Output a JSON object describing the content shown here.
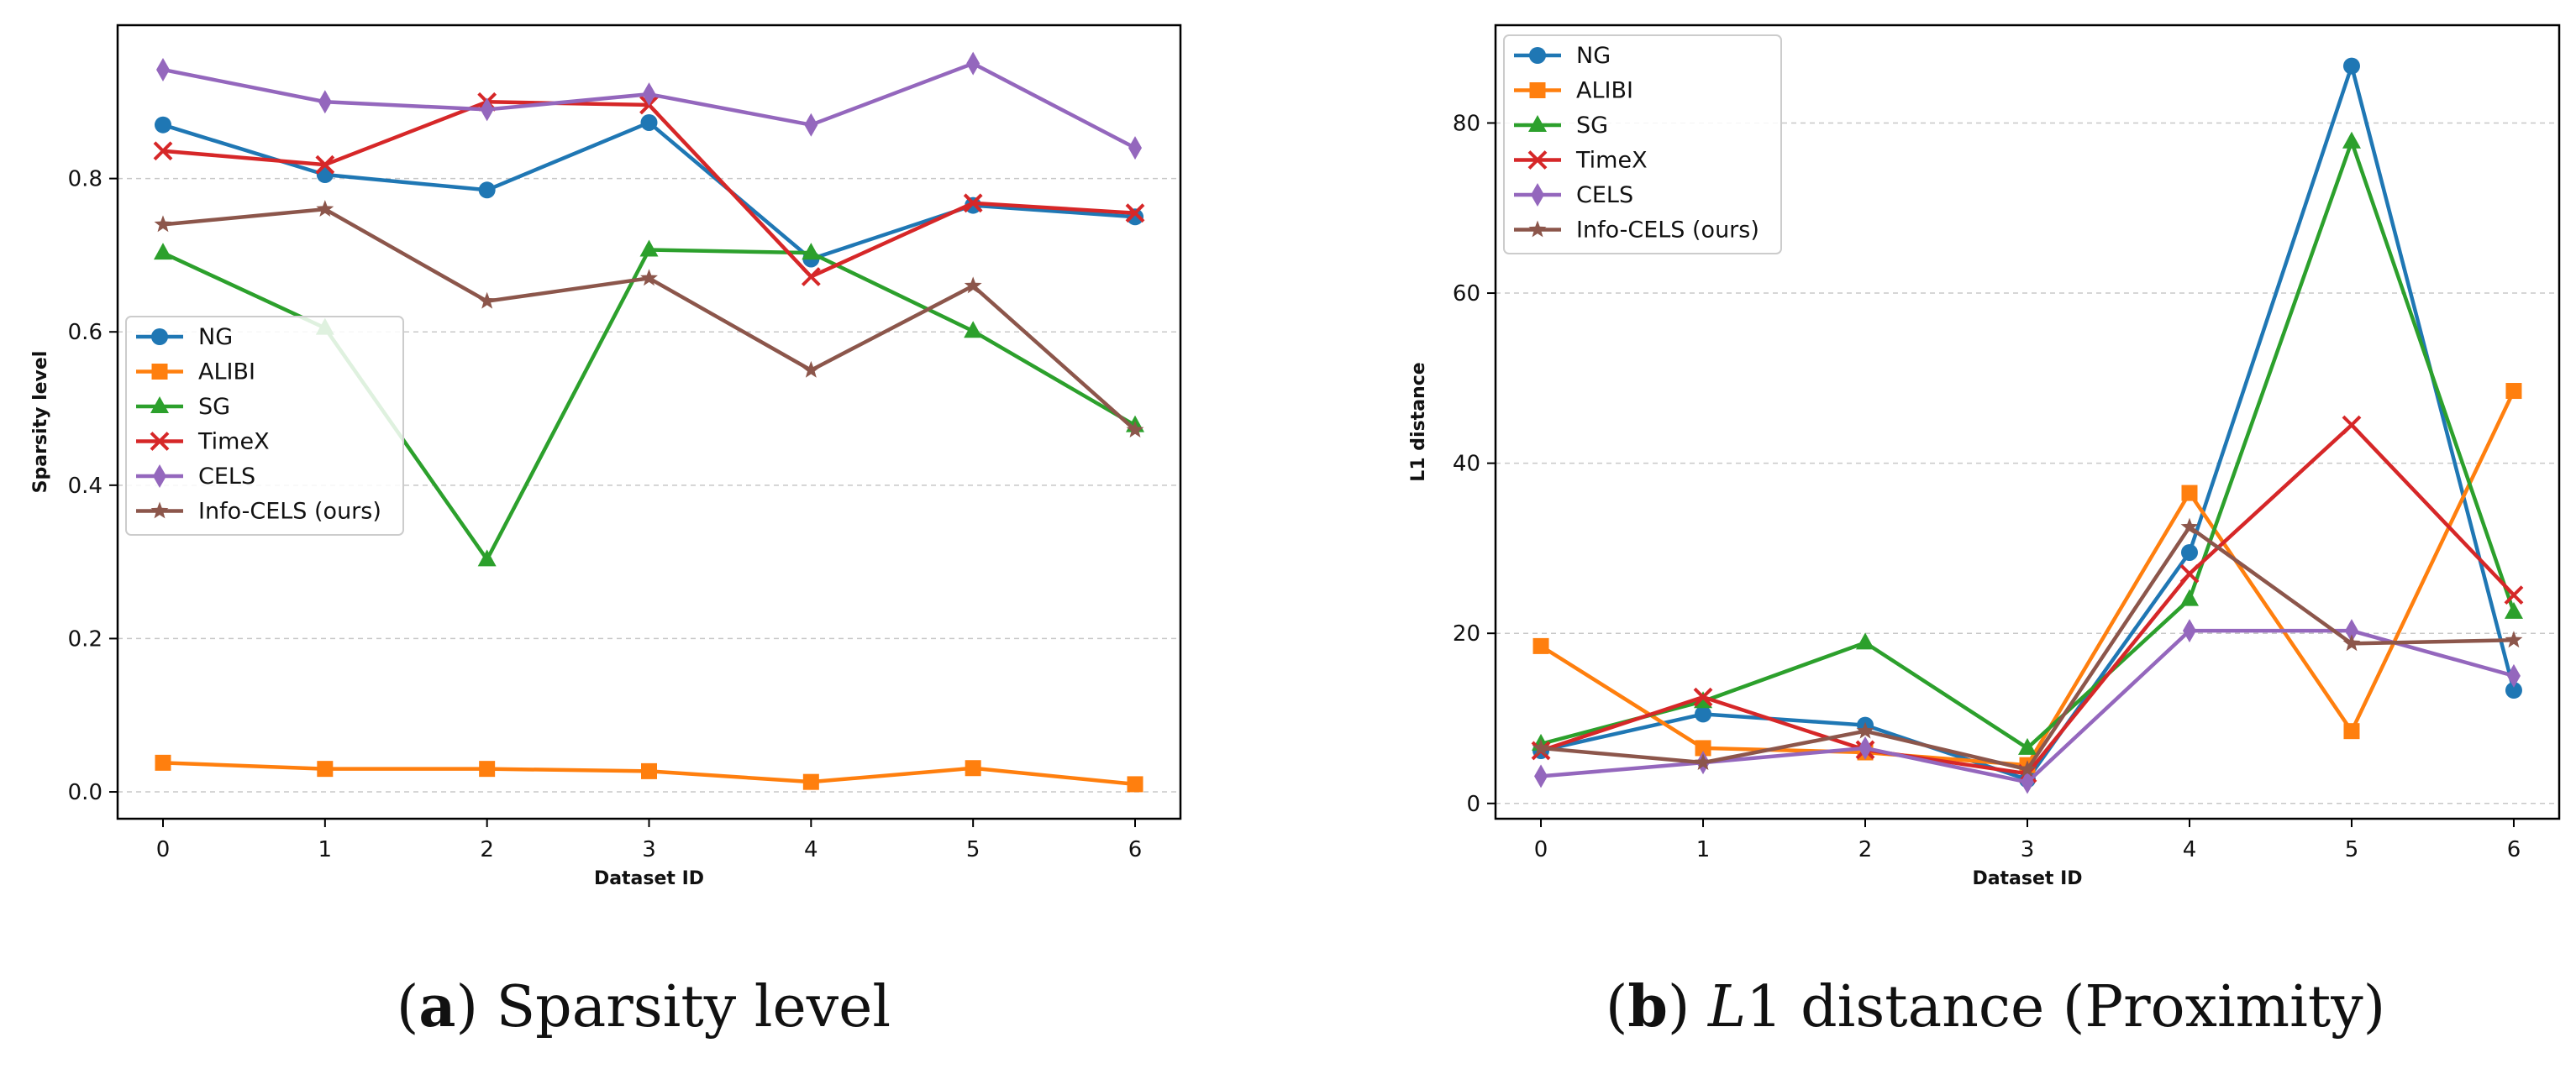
{
  "chart_data": [
    {
      "id": "a",
      "type": "line",
      "xlabel": "Dataset ID",
      "ylabel": "Sparsity level",
      "x": [
        0,
        1,
        2,
        3,
        4,
        5,
        6
      ],
      "xlim": [
        -0.28,
        6.28
      ],
      "ylim": [
        -0.035,
        1.0
      ],
      "xticks": [
        "0",
        "1",
        "2",
        "3",
        "4",
        "5",
        "6"
      ],
      "yticks": [
        0.0,
        0.2,
        0.4,
        0.6,
        0.8
      ],
      "ytick_labels": [
        "0.0",
        "0.2",
        "0.4",
        "0.6",
        "0.8"
      ],
      "grid": "horizontal dashed",
      "legend_position": "center-left",
      "caption_label": "(a)",
      "caption_tag": "a",
      "caption_text": "Sparsity level",
      "series": [
        {
          "name": "NG",
          "color": "#1f77b4",
          "marker": "circle",
          "values": [
            0.87,
            0.805,
            0.785,
            0.873,
            0.695,
            0.765,
            0.75
          ]
        },
        {
          "name": "ALIBI",
          "color": "#ff7f0e",
          "marker": "square",
          "values": [
            0.038,
            0.03,
            0.03,
            0.027,
            0.013,
            0.031,
            0.01
          ]
        },
        {
          "name": "SG",
          "color": "#2ca02c",
          "marker": "triangle",
          "values": [
            0.703,
            0.605,
            0.303,
            0.707,
            0.703,
            0.601,
            0.478
          ]
        },
        {
          "name": "TimeX",
          "color": "#d62728",
          "marker": "x",
          "values": [
            0.836,
            0.818,
            0.9,
            0.896,
            0.672,
            0.768,
            0.755
          ]
        },
        {
          "name": "CELS",
          "color": "#9467bd",
          "marker": "diamond",
          "values": [
            0.942,
            0.9,
            0.89,
            0.91,
            0.87,
            0.95,
            0.84
          ]
        },
        {
          "name": "Info-CELS (ours)",
          "color": "#8c564b",
          "marker": "star",
          "values": [
            0.74,
            0.76,
            0.64,
            0.67,
            0.55,
            0.66,
            0.472
          ]
        }
      ]
    },
    {
      "id": "b",
      "type": "line",
      "xlabel": "Dataset ID",
      "ylabel": "L1 distance",
      "x": [
        0,
        1,
        2,
        3,
        4,
        5,
        6
      ],
      "xlim": [
        -0.28,
        6.28
      ],
      "ylim": [
        -1.8,
        91.5
      ],
      "xticks": [
        "0",
        "1",
        "2",
        "3",
        "4",
        "5",
        "6"
      ],
      "yticks": [
        0,
        20,
        40,
        60,
        80
      ],
      "ytick_labels": [
        "0",
        "20",
        "40",
        "60",
        "80"
      ],
      "grid": "horizontal dashed",
      "legend_position": "upper-left",
      "caption_label": "(b)",
      "caption_tag": "b",
      "caption_l": "L",
      "caption_text": "1 distance (Proximity)",
      "series": [
        {
          "name": "NG",
          "color": "#1f77b4",
          "marker": "circle",
          "values": [
            6.2,
            10.5,
            9.2,
            2.8,
            29.5,
            86.7,
            13.3
          ]
        },
        {
          "name": "ALIBI",
          "color": "#ff7f0e",
          "marker": "square",
          "values": [
            18.5,
            6.5,
            6.0,
            4.5,
            36.5,
            8.5,
            48.5
          ]
        },
        {
          "name": "SG",
          "color": "#2ca02c",
          "marker": "triangle",
          "values": [
            7.0,
            12.0,
            18.9,
            6.5,
            24.0,
            77.8,
            22.5
          ]
        },
        {
          "name": "TimeX",
          "color": "#d62728",
          "marker": "x",
          "values": [
            6.2,
            12.5,
            6.3,
            3.5,
            27.0,
            44.5,
            24.5
          ]
        },
        {
          "name": "CELS",
          "color": "#9467bd",
          "marker": "diamond",
          "values": [
            3.2,
            4.8,
            6.5,
            2.5,
            20.3,
            20.3,
            15.0
          ]
        },
        {
          "name": "Info-CELS (ours)",
          "color": "#8c564b",
          "marker": "star",
          "values": [
            6.5,
            4.8,
            8.5,
            4.0,
            32.5,
            18.8,
            19.2
          ]
        }
      ]
    }
  ]
}
